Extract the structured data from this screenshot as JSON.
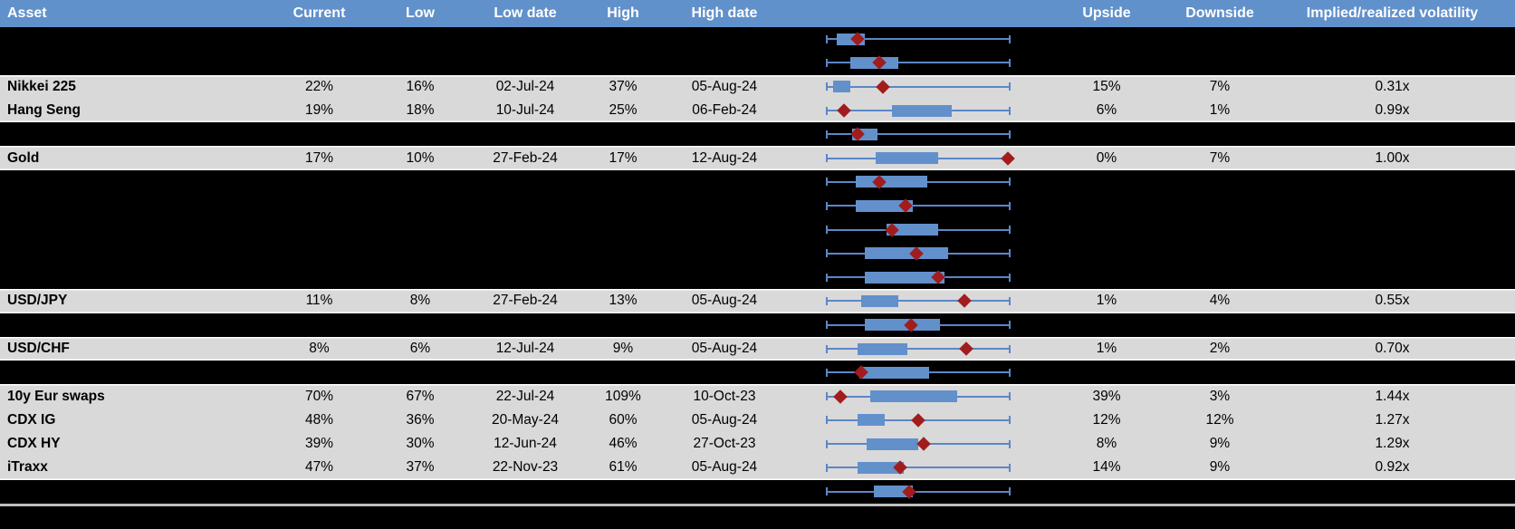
{
  "header": {
    "asset": "Asset",
    "current": "Current",
    "low": "Low",
    "low_date": "Low date",
    "high": "High",
    "high_date": "High date",
    "upside": "Upside",
    "downside": "Downside",
    "ivrv": "Implied/realized volatility"
  },
  "colors": {
    "header_bg": "#6191CB",
    "header_text": "#FFFFFF",
    "row_light_bg": "#D9D9D9",
    "row_hidden_bg": "#000000",
    "box_fill": "#6290CB",
    "whisker": "#5B87C8",
    "diamond_marker": "#A11D1D",
    "footer_line": "#BFBFBF"
  },
  "range_plot_legend": {
    "whisker_meaning": "low-high range",
    "diamond_meaning": "current level"
  },
  "rows": [
    {
      "type": "hidden",
      "box": {
        "low": 0.06,
        "high": 0.21,
        "current": 0.17
      }
    },
    {
      "type": "hidden",
      "box": {
        "low": 0.13,
        "high": 0.39,
        "current": 0.29
      }
    },
    {
      "type": "data",
      "asset": "Nikkei 225",
      "current": "22%",
      "low": "16%",
      "low_date": "02-Jul-24",
      "high": "37%",
      "high_date": "05-Aug-24",
      "upside": "15%",
      "downside": "7%",
      "ivrv": "0.31x",
      "box": {
        "low": 0.04,
        "high": 0.13,
        "current": 0.31
      }
    },
    {
      "type": "data",
      "asset": "Hang Seng",
      "current": "19%",
      "low": "18%",
      "low_date": "10-Jul-24",
      "high": "25%",
      "high_date": "06-Feb-24",
      "upside": "6%",
      "downside": "1%",
      "ivrv": "0.99x",
      "box": {
        "low": 0.36,
        "high": 0.68,
        "current": 0.1
      }
    },
    {
      "type": "hidden",
      "box": {
        "low": 0.14,
        "high": 0.28,
        "current": 0.17
      }
    },
    {
      "type": "data",
      "asset": "Gold",
      "current": "17%",
      "low": "10%",
      "low_date": "27-Feb-24",
      "high": "17%",
      "high_date": "12-Aug-24",
      "upside": "0%",
      "downside": "7%",
      "ivrv": "1.00x",
      "box": {
        "low": 0.27,
        "high": 0.61,
        "current": 0.985
      }
    },
    {
      "type": "hidden",
      "box": {
        "low": 0.16,
        "high": 0.55,
        "current": 0.29
      }
    },
    {
      "type": "hidden",
      "box": {
        "low": 0.16,
        "high": 0.47,
        "current": 0.43
      }
    },
    {
      "type": "hidden",
      "box": {
        "low": 0.33,
        "high": 0.61,
        "current": 0.36
      }
    },
    {
      "type": "hidden",
      "box": {
        "low": 0.21,
        "high": 0.66,
        "current": 0.49
      }
    },
    {
      "type": "hidden",
      "box": {
        "low": 0.21,
        "high": 0.64,
        "current": 0.61
      }
    },
    {
      "type": "data",
      "asset": "USD/JPY",
      "current": "11%",
      "low": "8%",
      "low_date": "27-Feb-24",
      "high": "13%",
      "high_date": "05-Aug-24",
      "upside": "1%",
      "downside": "4%",
      "ivrv": "0.55x",
      "box": {
        "low": 0.19,
        "high": 0.39,
        "current": 0.75
      }
    },
    {
      "type": "hidden",
      "box": {
        "low": 0.21,
        "high": 0.62,
        "current": 0.46
      }
    },
    {
      "type": "data",
      "asset": "USD/CHF",
      "current": "8%",
      "low": "6%",
      "low_date": "12-Jul-24",
      "high": "9%",
      "high_date": "05-Aug-24",
      "upside": "1%",
      "downside": "2%",
      "ivrv": "0.70x",
      "box": {
        "low": 0.17,
        "high": 0.44,
        "current": 0.76
      }
    },
    {
      "type": "hidden",
      "box": {
        "low": 0.18,
        "high": 0.56,
        "current": 0.19
      }
    },
    {
      "type": "data",
      "asset": "10y Eur swaps",
      "current": "70%",
      "low": "67%",
      "low_date": "22-Jul-24",
      "high": "109%",
      "high_date": "10-Oct-23",
      "upside": "39%",
      "downside": "3%",
      "ivrv": "1.44x",
      "box": {
        "low": 0.24,
        "high": 0.71,
        "current": 0.08
      }
    },
    {
      "type": "data",
      "asset": "CDX IG",
      "current": "48%",
      "low": "36%",
      "low_date": "20-May-24",
      "high": "60%",
      "high_date": "05-Aug-24",
      "upside": "12%",
      "downside": "12%",
      "ivrv": "1.27x",
      "box": {
        "low": 0.17,
        "high": 0.32,
        "current": 0.5
      }
    },
    {
      "type": "data",
      "asset": "CDX HY",
      "current": "39%",
      "low": "30%",
      "low_date": "12-Jun-24",
      "high": "46%",
      "high_date": "27-Oct-23",
      "upside": "8%",
      "downside": "9%",
      "ivrv": "1.29x",
      "box": {
        "low": 0.22,
        "high": 0.5,
        "current": 0.53
      }
    },
    {
      "type": "data",
      "asset": "iTraxx",
      "current": "47%",
      "low": "37%",
      "low_date": "22-Nov-23",
      "high": "61%",
      "high_date": "05-Aug-24",
      "upside": "14%",
      "downside": "9%",
      "ivrv": "0.92x",
      "box": {
        "low": 0.17,
        "high": 0.42,
        "current": 0.4
      }
    },
    {
      "type": "hidden",
      "box": {
        "low": 0.26,
        "high": 0.47,
        "current": 0.45
      }
    }
  ]
}
